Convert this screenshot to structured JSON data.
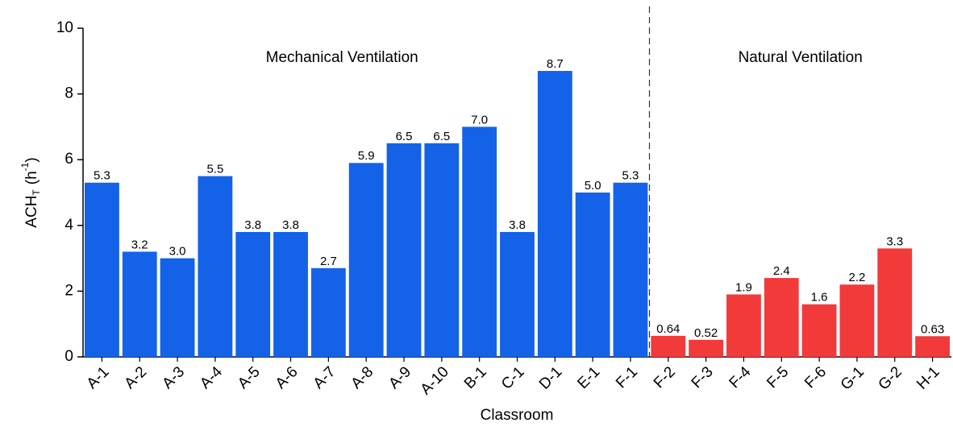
{
  "chart_data": {
    "type": "bar",
    "x_label": "Classroom",
    "y_label": [
      "ACH",
      "T",
      "(h",
      "-1",
      ")"
    ],
    "categories": [
      "A-1",
      "A-2",
      "A-3",
      "A-4",
      "A-5",
      "A-6",
      "A-7",
      "A-8",
      "A-9",
      "A-10",
      "B-1",
      "C-1",
      "D-1",
      "E-1",
      "F-1",
      "F-2",
      "F-3",
      "F-4",
      "F-5",
      "F-6",
      "G-1",
      "G-2",
      "H-1"
    ],
    "series": [
      {
        "name": "Mechanical Ventilation",
        "color": "#1462e8",
        "values": [
          5.3,
          3.2,
          3.0,
          5.5,
          3.8,
          3.8,
          2.7,
          5.9,
          6.5,
          6.5,
          7.0,
          3.8,
          8.7,
          5.0,
          5.3,
          null,
          null,
          null,
          null,
          null,
          null,
          null,
          null
        ],
        "value_labels": [
          "5.3",
          "3.2",
          "3.0",
          "5.5",
          "3.8",
          "3.8",
          "2.7",
          "5.9",
          "6.5",
          "6.5",
          "7.0",
          "3.8",
          "8.7",
          "5.0",
          "5.3",
          null,
          null,
          null,
          null,
          null,
          null,
          null,
          null
        ]
      },
      {
        "name": "Natural Ventilation",
        "color": "#f23a3a",
        "values": [
          null,
          null,
          null,
          null,
          null,
          null,
          null,
          null,
          null,
          null,
          null,
          null,
          null,
          null,
          null,
          0.64,
          0.52,
          1.9,
          2.4,
          1.6,
          2.2,
          3.3,
          0.63
        ],
        "value_labels": [
          null,
          null,
          null,
          null,
          null,
          null,
          null,
          null,
          null,
          null,
          null,
          null,
          null,
          null,
          null,
          "0.64",
          "0.52",
          "1.9",
          "2.4",
          "1.6",
          "2.2",
          "3.3",
          "0.63"
        ]
      }
    ],
    "ylim": [
      0,
      10
    ],
    "yticks": [
      0,
      2,
      4,
      6,
      8,
      10
    ],
    "grid": false
  }
}
